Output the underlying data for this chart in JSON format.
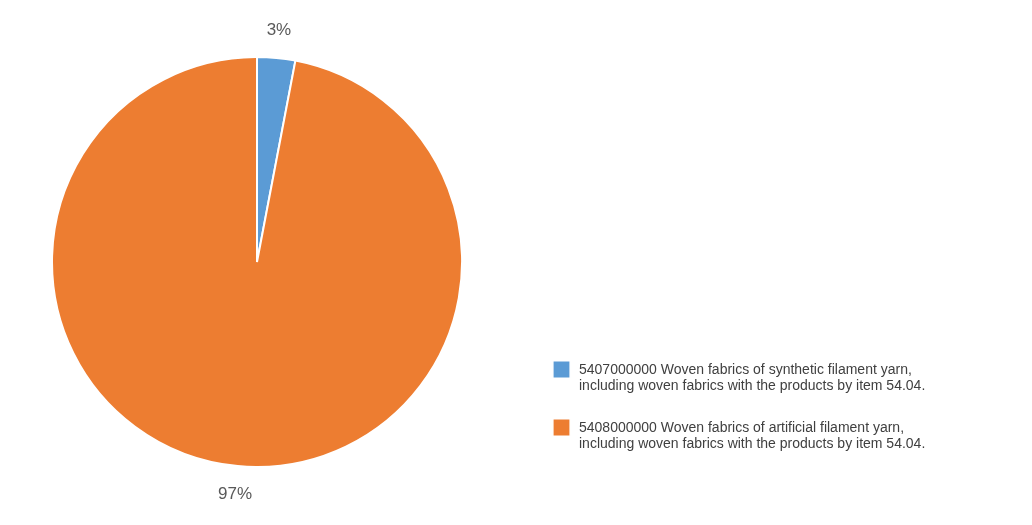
{
  "chart_data": {
    "type": "pie",
    "categories": [
      "5407000000 Woven fabrics of synthetic filament yarn, including woven fabrics with the products by item 54.04.",
      "5408000000 Woven fabrics of artificial filament yarn, including woven fabrics with the products by item 54.04."
    ],
    "values": [
      3,
      97
    ],
    "colors": [
      "#5b9bd5",
      "#ed7d31"
    ],
    "value_labels": [
      "3%",
      "97%"
    ],
    "legend": "bottom right"
  }
}
